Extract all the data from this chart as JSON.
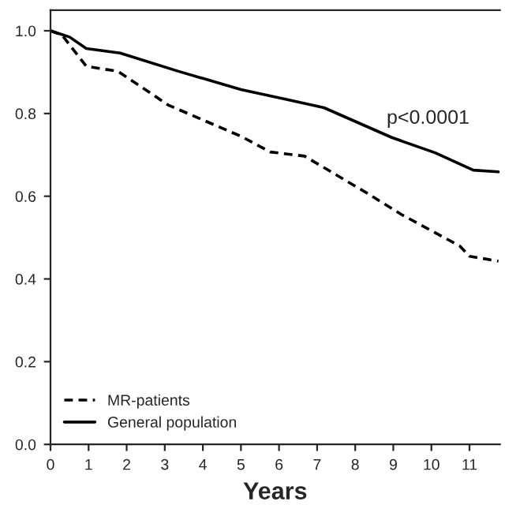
{
  "chart_data": {
    "type": "line",
    "xlabel": "Years",
    "xlim": [
      0,
      11.8
    ],
    "xticks": [
      0,
      1,
      2,
      3,
      4,
      5,
      6,
      7,
      8,
      9,
      10,
      11
    ],
    "ylim": [
      0,
      1.05
    ],
    "yticks": [
      {
        "value": 0,
        "label": "0.0"
      },
      {
        "value": 0.2,
        "label": "0.2"
      },
      {
        "value": 0.4,
        "label": "0.4"
      },
      {
        "value": 0.6,
        "label": "0.6"
      },
      {
        "value": 0.8,
        "label": "0.8"
      },
      {
        "value": 1.0,
        "label": "1.0"
      }
    ],
    "series": [
      {
        "name": "MR-patients",
        "color": "#000000",
        "line_style": "dashed",
        "x": [
          0,
          0.3,
          0.94,
          1.77,
          3.1,
          5.0,
          5.77,
          6.67,
          8.32,
          9.21,
          10.74,
          11.0,
          11.76
        ],
        "values": [
          1.0,
          0.99,
          0.914,
          0.902,
          0.82,
          0.745,
          0.707,
          0.697,
          0.607,
          0.556,
          0.48,
          0.455,
          0.443
        ]
      },
      {
        "name": "General population",
        "color": "#000000",
        "line_style": "solid",
        "x": [
          0,
          0.5,
          0.94,
          1.83,
          3.36,
          5.0,
          6.15,
          7.18,
          8.96,
          10.1,
          11.1,
          11.76
        ],
        "values": [
          1.0,
          0.985,
          0.957,
          0.946,
          0.902,
          0.858,
          0.835,
          0.814,
          0.742,
          0.705,
          0.663,
          0.659
        ]
      }
    ],
    "annotations": [
      "p<0.0001"
    ],
    "legend": "bottom left",
    "grid": false
  }
}
